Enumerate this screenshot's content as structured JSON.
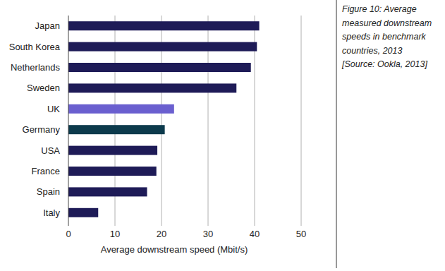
{
  "chart_data": {
    "type": "bar",
    "orientation": "horizontal",
    "annotations": [
      "Figure 10: Average",
      "measured downstream",
      "speeds in benchmark",
      "countries, 2013",
      "[Source: Ookla, 2013]"
    ],
    "x_label": "Average downstream speed (Mbit/s)",
    "categories": [
      "Japan",
      "South Korea",
      "Netherlands",
      "Sweden",
      "UK",
      "Germany",
      "USA",
      "France",
      "Spain",
      "Italy"
    ],
    "values": [
      41,
      40.5,
      39.2,
      36.1,
      22.7,
      20.7,
      19.1,
      18.9,
      16.9,
      6.4
    ],
    "colors": [
      "#1e1b57",
      "#1e1b57",
      "#1e1b57",
      "#1e1b57",
      "#6a5fcf",
      "#0c3a4c",
      "#1e1b57",
      "#1e1b57",
      "#1e1b57",
      "#1e1b57"
    ],
    "xlim": [
      0,
      50
    ],
    "xticks": [
      0,
      10,
      20,
      30,
      40,
      50
    ],
    "grid": true
  }
}
